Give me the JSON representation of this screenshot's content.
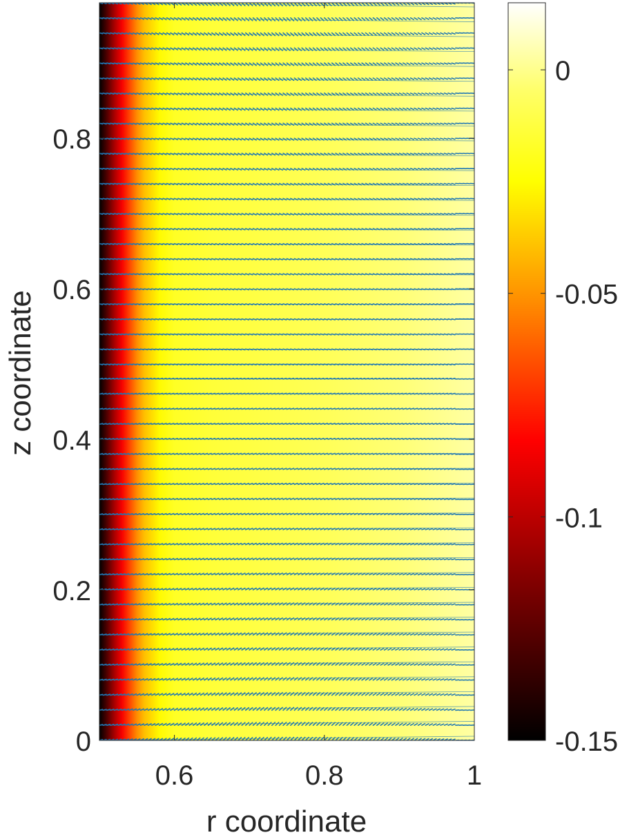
{
  "chart_data": {
    "type": "heatmap",
    "title": "",
    "xlabel": "r coordinate",
    "ylabel": "z coordinate",
    "xlim": [
      0.5,
      1.0
    ],
    "ylim": [
      0.0,
      0.98
    ],
    "x_ticks": [
      0.6,
      0.8,
      1.0
    ],
    "x_tick_labels": [
      "0.6",
      "0.8",
      "1"
    ],
    "y_ticks": [
      0.0,
      0.2,
      0.4,
      0.6,
      0.8
    ],
    "y_tick_labels": [
      "0",
      "0.2",
      "0.4",
      "0.6",
      "0.8"
    ],
    "grid": false,
    "colormap": "hot",
    "field_profile": {
      "r": [
        0.5,
        0.51,
        0.52,
        0.53,
        0.54,
        0.55,
        0.56,
        0.58,
        0.6,
        0.65,
        0.7,
        0.8,
        0.9,
        1.0
      ],
      "value": [
        -0.15,
        -0.128,
        -0.105,
        -0.085,
        -0.068,
        -0.052,
        -0.04,
        -0.026,
        -0.018,
        -0.014,
        -0.012,
        -0.008,
        -0.003,
        0.003
      ]
    },
    "colorbar": {
      "ticks": [
        0.0,
        -0.05,
        -0.1,
        -0.15
      ],
      "tick_labels": [
        "0",
        "-0.05",
        "-0.1",
        "-0.15"
      ],
      "range": [
        -0.15,
        0.015
      ],
      "stops": [
        {
          "v": -0.15,
          "color": "#000000"
        },
        {
          "v": -0.115,
          "color": "#800000"
        },
        {
          "v": -0.083,
          "color": "#ff0000"
        },
        {
          "v": -0.052,
          "color": "#ff8c00"
        },
        {
          "v": -0.025,
          "color": "#ffff00"
        },
        {
          "v": -0.005,
          "color": "#ffff66"
        },
        {
          "v": 0.015,
          "color": "#ffffff"
        }
      ]
    },
    "vector_field": {
      "color": "#1f77b4",
      "rows_z_start": 0.0,
      "rows_z_step": 0.02,
      "rows_count": 50,
      "cols_r_start": 0.5,
      "cols_r_step": 0.005,
      "cols_count": 101
    }
  }
}
